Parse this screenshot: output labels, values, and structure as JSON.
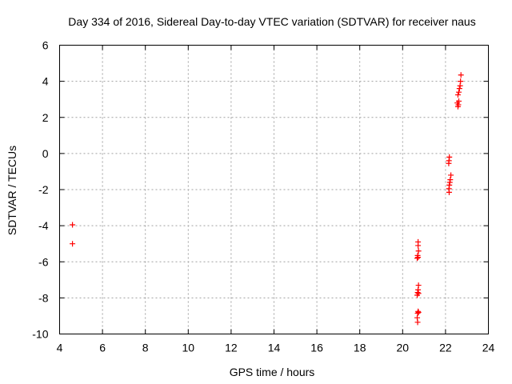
{
  "chart_data": {
    "type": "scatter",
    "title": "Day 334 of 2016, Sidereal Day-to-day VTEC variation (SDTVAR) for receiver naus",
    "xlabel": "GPS time / hours",
    "ylabel": "SDTVAR / TECUs",
    "xlim": [
      4,
      24
    ],
    "ylim": [
      -10,
      6
    ],
    "xticks": [
      4,
      6,
      8,
      10,
      12,
      14,
      16,
      18,
      20,
      22,
      24
    ],
    "yticks": [
      -10,
      -8,
      -6,
      -4,
      -2,
      0,
      2,
      4,
      6
    ],
    "grid": true,
    "marker": "+",
    "series": [
      {
        "name": "naus",
        "color": "#ff0000",
        "points": [
          [
            4.6,
            -3.95
          ],
          [
            4.6,
            -5.0
          ],
          [
            20.72,
            -4.9
          ],
          [
            20.72,
            -5.1
          ],
          [
            20.74,
            -5.4
          ],
          [
            20.7,
            -5.65
          ],
          [
            20.72,
            -5.75
          ],
          [
            20.68,
            -5.8
          ],
          [
            20.74,
            -7.3
          ],
          [
            20.72,
            -7.55
          ],
          [
            20.7,
            -7.7
          ],
          [
            20.74,
            -7.75
          ],
          [
            20.68,
            -7.85
          ],
          [
            20.72,
            -8.75
          ],
          [
            20.7,
            -8.85
          ],
          [
            20.74,
            -8.8
          ],
          [
            20.68,
            -9.1
          ],
          [
            20.7,
            -9.35
          ],
          [
            22.18,
            -0.2
          ],
          [
            22.16,
            -0.4
          ],
          [
            22.15,
            -0.55
          ],
          [
            22.25,
            -1.2
          ],
          [
            22.22,
            -1.45
          ],
          [
            22.2,
            -1.6
          ],
          [
            22.18,
            -1.75
          ],
          [
            22.16,
            -1.95
          ],
          [
            22.17,
            -2.15
          ],
          [
            22.58,
            2.6
          ],
          [
            22.6,
            2.7
          ],
          [
            22.55,
            2.8
          ],
          [
            22.62,
            2.9
          ],
          [
            22.58,
            3.25
          ],
          [
            22.62,
            3.4
          ],
          [
            22.65,
            3.6
          ],
          [
            22.68,
            3.75
          ],
          [
            22.7,
            4.0
          ],
          [
            22.72,
            4.35
          ]
        ]
      }
    ]
  }
}
